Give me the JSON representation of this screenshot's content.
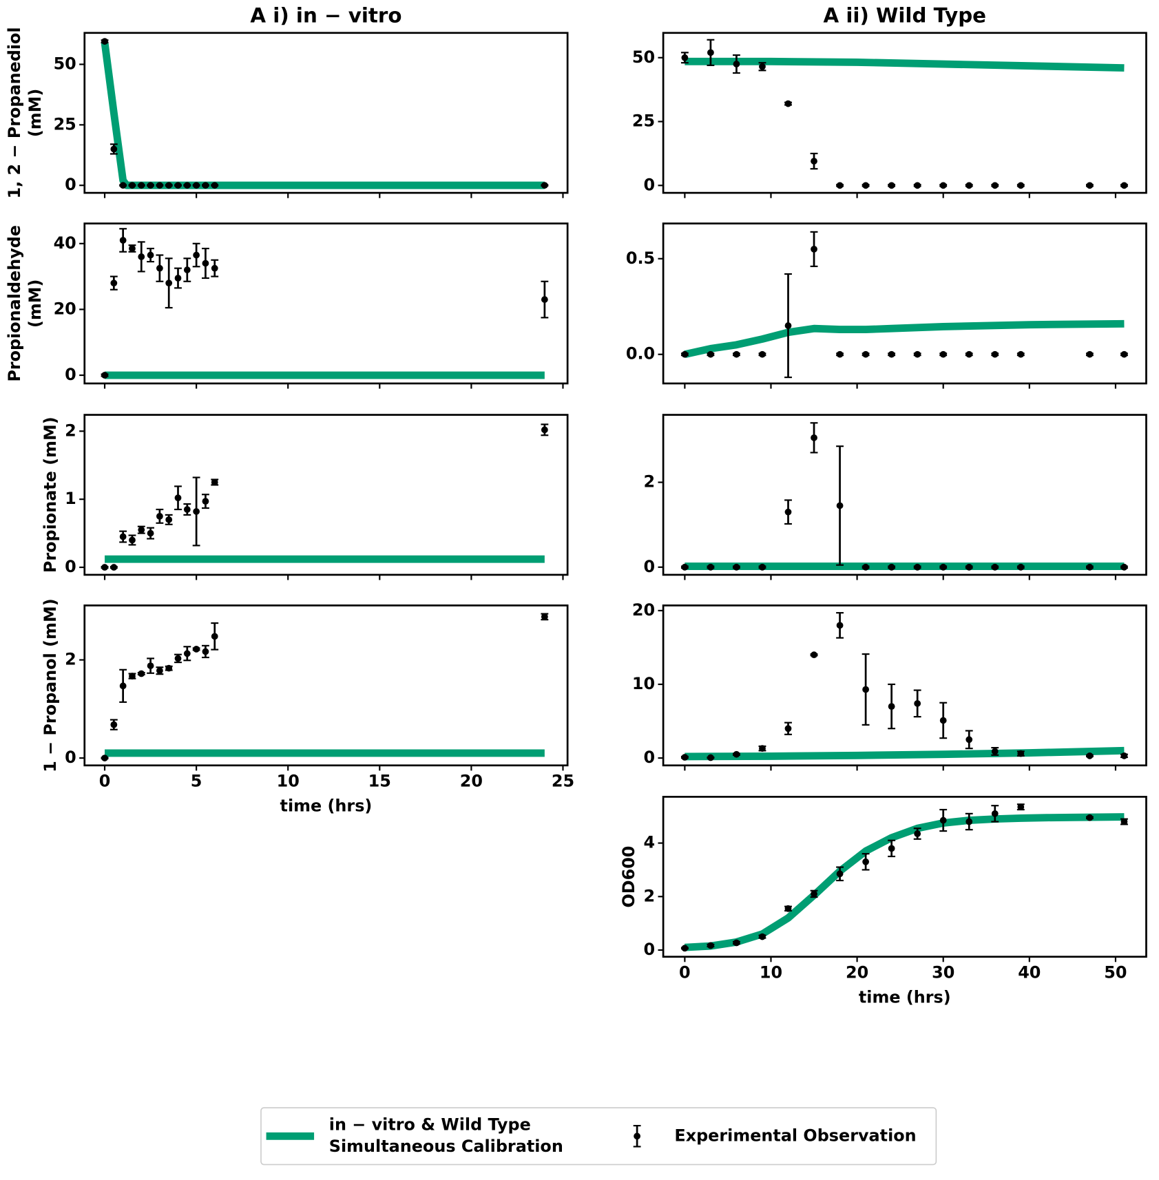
{
  "chart_data": [
    {
      "type": "line",
      "title": "A i) in − vitro",
      "ylabel": [
        "1, 2 − Propanediol",
        "(mM)"
      ],
      "xlim": [
        -1.1,
        25.25
      ],
      "ylim": [
        -3.1,
        63
      ],
      "xticks": [
        0,
        5,
        10,
        15,
        20,
        25
      ],
      "yticks": [
        0,
        25,
        50
      ],
      "show_xtick_labels": false,
      "series": [
        {
          "color": "#000000",
          "x": [
            0,
            0.5,
            1,
            1.5,
            2,
            2.5,
            3,
            3.5,
            4,
            4.5,
            5,
            5.5,
            6,
            24
          ],
          "values": [
            59.5,
            15,
            0,
            0,
            0,
            0,
            0,
            0,
            0,
            0,
            0,
            0,
            0,
            0
          ],
          "errors": [
            0.5,
            2,
            0.2,
            0.2,
            0.2,
            0.2,
            0.2,
            0.2,
            0.2,
            0.2,
            0.2,
            0.2,
            0.2,
            0.2
          ]
        },
        {
          "color": "#009e73",
          "x": [
            0,
            0.5,
            1,
            1.2,
            24
          ],
          "values": [
            59,
            30,
            2,
            0,
            0
          ]
        }
      ]
    },
    {
      "type": "line",
      "title": "A ii) Wild Type",
      "ylabel": [],
      "xlim": [
        -2.5,
        53.56
      ],
      "ylim": [
        -2.9,
        59.7
      ],
      "xticks": [
        0,
        10,
        20,
        30,
        40,
        50
      ],
      "yticks": [
        0,
        25,
        50
      ],
      "show_xtick_labels": false,
      "series": [
        {
          "color": "#000000",
          "x": [
            0,
            3,
            6,
            9,
            12,
            15,
            18,
            21,
            24,
            27,
            30,
            33,
            36,
            39,
            47,
            51
          ],
          "values": [
            50,
            52,
            47.5,
            46.5,
            32,
            9.5,
            0,
            0,
            0,
            0,
            0,
            0,
            0,
            0,
            0,
            0
          ],
          "errors": [
            2,
            5,
            3.5,
            1.5,
            0.5,
            3,
            0.3,
            0.3,
            0.3,
            0.3,
            0.3,
            0.3,
            0.3,
            0.3,
            0.3,
            0.3
          ]
        },
        {
          "color": "#009e73",
          "x": [
            0,
            10,
            20,
            30,
            40,
            51
          ],
          "values": [
            48.5,
            48.5,
            48.2,
            47.5,
            46.8,
            46
          ]
        }
      ]
    },
    {
      "type": "line",
      "ylabel": [
        "Propionaldehyde",
        "(mM)"
      ],
      "xlim": [
        -1.1,
        25.25
      ],
      "ylim": [
        -2.5,
        46.1
      ],
      "xticks": [
        0,
        5,
        10,
        15,
        20,
        25
      ],
      "yticks": [
        0,
        20,
        40
      ],
      "show_xtick_labels": false,
      "series": [
        {
          "color": "#000000",
          "x": [
            0,
            0.5,
            1,
            1.5,
            2,
            2.5,
            3,
            3.5,
            4,
            4.5,
            5,
            5.5,
            6,
            24
          ],
          "values": [
            0,
            28,
            41,
            38.5,
            36,
            36.5,
            32.5,
            28,
            29.5,
            32,
            36.5,
            34,
            32.5,
            23
          ],
          "errors": [
            0.3,
            2,
            3.5,
            1,
            4.5,
            2,
            4,
            7.5,
            3,
            3.5,
            3.5,
            4.5,
            2.5,
            5.5
          ]
        },
        {
          "color": "#009e73",
          "x": [
            0,
            24
          ],
          "values": [
            0,
            0
          ]
        }
      ]
    },
    {
      "type": "line",
      "ylabel": [],
      "xlim": [
        -2.5,
        53.56
      ],
      "ylim": [
        -0.152,
        0.684
      ],
      "xticks": [
        0,
        10,
        20,
        30,
        40,
        50
      ],
      "yticks": [
        {
          "value": 0,
          "label": "0.0"
        },
        {
          "value": 0.5,
          "label": "0.5"
        }
      ],
      "show_xtick_labels": false,
      "series": [
        {
          "color": "#000000",
          "x": [
            0,
            3,
            6,
            9,
            12,
            15,
            18,
            21,
            24,
            27,
            30,
            33,
            36,
            39,
            47,
            51
          ],
          "values": [
            0,
            0,
            0,
            0,
            0.15,
            0.55,
            0,
            0,
            0,
            0,
            0,
            0,
            0,
            0,
            0,
            0
          ],
          "errors": [
            0.005,
            0.005,
            0.005,
            0.005,
            0.27,
            0.09,
            0.005,
            0.005,
            0.005,
            0.005,
            0.005,
            0.005,
            0.005,
            0.005,
            0.005,
            0.005
          ]
        },
        {
          "color": "#009e73",
          "x": [
            0,
            3,
            6,
            9,
            12,
            15,
            18,
            21,
            24,
            30,
            40,
            51
          ],
          "values": [
            0,
            0.03,
            0.05,
            0.08,
            0.115,
            0.135,
            0.13,
            0.13,
            0.135,
            0.145,
            0.155,
            0.16
          ]
        }
      ]
    },
    {
      "type": "line",
      "ylabel": [
        "Propionate (mM)"
      ],
      "xlim": [
        -1.1,
        25.25
      ],
      "ylim": [
        -0.11,
        2.24
      ],
      "xticks": [
        0,
        5,
        10,
        15,
        20,
        25
      ],
      "yticks": [
        0,
        1,
        2
      ],
      "show_xtick_labels": false,
      "series": [
        {
          "color": "#000000",
          "x": [
            0,
            0.5,
            1,
            1.5,
            2,
            2.5,
            3,
            3.5,
            4,
            4.5,
            5,
            5.5,
            6,
            24
          ],
          "values": [
            0,
            0,
            0.45,
            0.4,
            0.55,
            0.5,
            0.75,
            0.7,
            1.02,
            0.85,
            0.82,
            0.97,
            1.25,
            2.02
          ],
          "errors": [
            0.01,
            0.01,
            0.08,
            0.07,
            0.05,
            0.08,
            0.1,
            0.07,
            0.17,
            0.08,
            0.5,
            0.1,
            0.04,
            0.08
          ]
        },
        {
          "color": "#009e73",
          "x": [
            0,
            24
          ],
          "values": [
            0.12,
            0.12
          ]
        }
      ]
    },
    {
      "type": "line",
      "ylabel": [],
      "xlim": [
        -2.5,
        53.56
      ],
      "ylim": [
        -0.18,
        3.59
      ],
      "xticks": [
        0,
        10,
        20,
        30,
        40,
        50
      ],
      "yticks": [
        0,
        2
      ],
      "show_xtick_labels": false,
      "series": [
        {
          "color": "#000000",
          "x": [
            0,
            3,
            6,
            9,
            12,
            15,
            18,
            21,
            24,
            27,
            30,
            33,
            36,
            39,
            47,
            51
          ],
          "values": [
            0,
            0,
            0,
            0,
            1.3,
            3.05,
            1.45,
            0,
            0,
            0,
            0,
            0,
            0,
            0,
            0,
            0
          ],
          "errors": [
            0.02,
            0.02,
            0.02,
            0.02,
            0.28,
            0.35,
            1.4,
            0.02,
            0.02,
            0.02,
            0.02,
            0.02,
            0.02,
            0.02,
            0.02,
            0.02
          ]
        },
        {
          "color": "#009e73",
          "x": [
            0,
            51
          ],
          "values": [
            0.02,
            0.02
          ]
        }
      ]
    },
    {
      "type": "line",
      "ylabel": [
        "1 − Propanol (mM)"
      ],
      "xlabel": "time (hrs)",
      "xlim": [
        -1.1,
        25.25
      ],
      "ylim": [
        -0.15,
        3.11
      ],
      "xticks": [
        0,
        5,
        10,
        15,
        20,
        25
      ],
      "yticks": [
        0,
        2
      ],
      "show_xtick_labels": true,
      "series": [
        {
          "color": "#000000",
          "x": [
            0,
            0.5,
            1,
            1.5,
            2,
            2.5,
            3,
            3.5,
            4,
            4.5,
            5,
            5.5,
            6,
            24
          ],
          "values": [
            0,
            0.68,
            1.47,
            1.67,
            1.72,
            1.88,
            1.78,
            1.83,
            2.03,
            2.13,
            2.22,
            2.17,
            2.48,
            2.88
          ],
          "errors": [
            0.01,
            0.1,
            0.33,
            0.05,
            0.02,
            0.15,
            0.07,
            0.04,
            0.08,
            0.14,
            0.02,
            0.12,
            0.27,
            0.06
          ]
        },
        {
          "color": "#009e73",
          "x": [
            0,
            24
          ],
          "values": [
            0.1,
            0.1
          ]
        }
      ]
    },
    {
      "type": "line",
      "ylabel": [],
      "xlim": [
        -2.5,
        53.56
      ],
      "ylim": [
        -1.0,
        20.7
      ],
      "xticks": [
        0,
        10,
        20,
        30,
        40,
        50
      ],
      "yticks": [
        0,
        10,
        20
      ],
      "show_xtick_labels": false,
      "series": [
        {
          "color": "#000000",
          "x": [
            0,
            3,
            6,
            9,
            12,
            15,
            18,
            21,
            24,
            27,
            30,
            33,
            36,
            39,
            47,
            51
          ],
          "values": [
            0.1,
            0.05,
            0.5,
            1.3,
            4,
            14,
            18,
            9.3,
            7,
            7.4,
            5.1,
            2.5,
            0.9,
            0.6,
            0.3,
            0.3
          ],
          "errors": [
            0.1,
            0.05,
            0.1,
            0.3,
            0.8,
            0.1,
            1.7,
            4.8,
            3,
            1.8,
            2.4,
            1.2,
            0.5,
            0.3,
            0.1,
            0.2
          ]
        },
        {
          "color": "#009e73",
          "x": [
            0,
            10,
            20,
            30,
            40,
            51
          ],
          "values": [
            0.2,
            0.25,
            0.35,
            0.5,
            0.7,
            1.0
          ]
        }
      ]
    },
    {
      "type": "line",
      "ylabel": [
        "OD600"
      ],
      "xlabel": "time (hrs)",
      "xlim": [
        -2.5,
        53.56
      ],
      "ylim": [
        -0.25,
        5.73
      ],
      "xticks": [
        0,
        10,
        20,
        30,
        40,
        50
      ],
      "yticks": [
        0,
        2,
        4
      ],
      "show_xtick_labels": true,
      "series": [
        {
          "color": "#000000",
          "x": [
            0,
            3,
            6,
            9,
            12,
            15,
            18,
            21,
            24,
            27,
            30,
            33,
            36,
            39,
            47,
            51
          ],
          "values": [
            0.07,
            0.17,
            0.27,
            0.5,
            1.55,
            2.1,
            2.85,
            3.3,
            3.8,
            4.35,
            4.85,
            4.8,
            5.1,
            5.35,
            4.95,
            4.8
          ],
          "errors": [
            0.02,
            0.04,
            0.04,
            0.05,
            0.08,
            0.12,
            0.25,
            0.3,
            0.3,
            0.2,
            0.4,
            0.3,
            0.3,
            0.1,
            0.03,
            0.1
          ]
        },
        {
          "color": "#009e73",
          "x": [
            0,
            3,
            6,
            9,
            12,
            15,
            18,
            21,
            24,
            27,
            30,
            33,
            36,
            39,
            42,
            45,
            48,
            51
          ],
          "values": [
            0.1,
            0.15,
            0.3,
            0.6,
            1.2,
            2.05,
            2.95,
            3.7,
            4.2,
            4.55,
            4.75,
            4.85,
            4.9,
            4.93,
            4.95,
            4.96,
            4.97,
            4.98
          ]
        }
      ]
    }
  ],
  "legend": [
    {
      "label": [
        "in − vitro & Wild Type",
        "Simultaneous Calibration"
      ],
      "style": "line",
      "color": "#009e73"
    },
    {
      "label": [
        "Experimental Observation"
      ],
      "style": "errorbar",
      "color": "#000000"
    }
  ]
}
